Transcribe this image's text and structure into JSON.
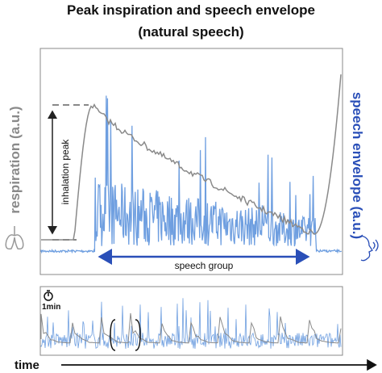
{
  "title_line1": "Peak inspiration and speech envelope",
  "title_line2": "(natural speech)",
  "left_label": "respiration (a.u.)",
  "right_label": "speech envelope (a.u.)",
  "inhalation_label": "inhalation peak",
  "speech_group_label": "speech group",
  "time_scale_label": "1min",
  "time_axis_label": "time"
}
